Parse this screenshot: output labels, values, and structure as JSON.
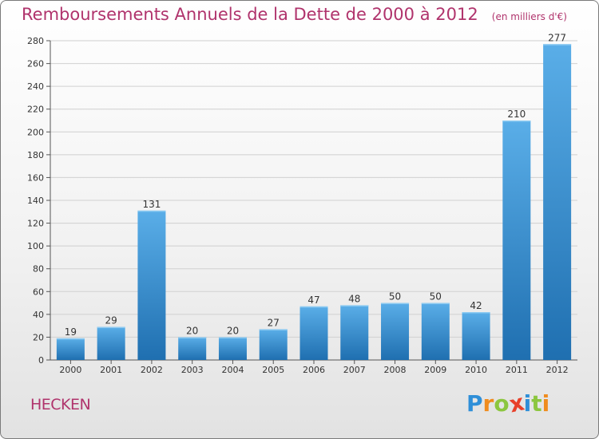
{
  "title": "Remboursements Annuels de la Dette de 2000 à 2012",
  "subtitle": "(en milliers d'€)",
  "commune": "HECKEN",
  "logo": {
    "letters": [
      "P",
      "r",
      "o",
      "x",
      "i",
      "t",
      "i"
    ],
    "colors": [
      "#2f8fd8",
      "#f08c1e",
      "#8cc63f",
      "#e8402a",
      "#2f8fd8",
      "#8cc63f",
      "#f08c1e"
    ]
  },
  "colors": {
    "title": "#b0336c",
    "bar_top": "#5aaee8",
    "bar_bottom": "#1f6fb0",
    "grid": "#d0d0d0"
  },
  "chart_data": {
    "type": "bar",
    "title": "Remboursements Annuels de la Dette de 2000 à 2012",
    "subtitle": "(en milliers d'€)",
    "categories": [
      "2000",
      "2001",
      "2002",
      "2003",
      "2004",
      "2005",
      "2006",
      "2007",
      "2008",
      "2009",
      "2010",
      "2011",
      "2012"
    ],
    "values": [
      19,
      29,
      131,
      20,
      20,
      27,
      47,
      48,
      50,
      50,
      42,
      210,
      277
    ],
    "ylim": [
      0,
      280
    ],
    "yticks": [
      0,
      20,
      40,
      60,
      80,
      100,
      120,
      140,
      160,
      180,
      200,
      220,
      240,
      260,
      280
    ],
    "grid": true,
    "data_labels": true
  }
}
